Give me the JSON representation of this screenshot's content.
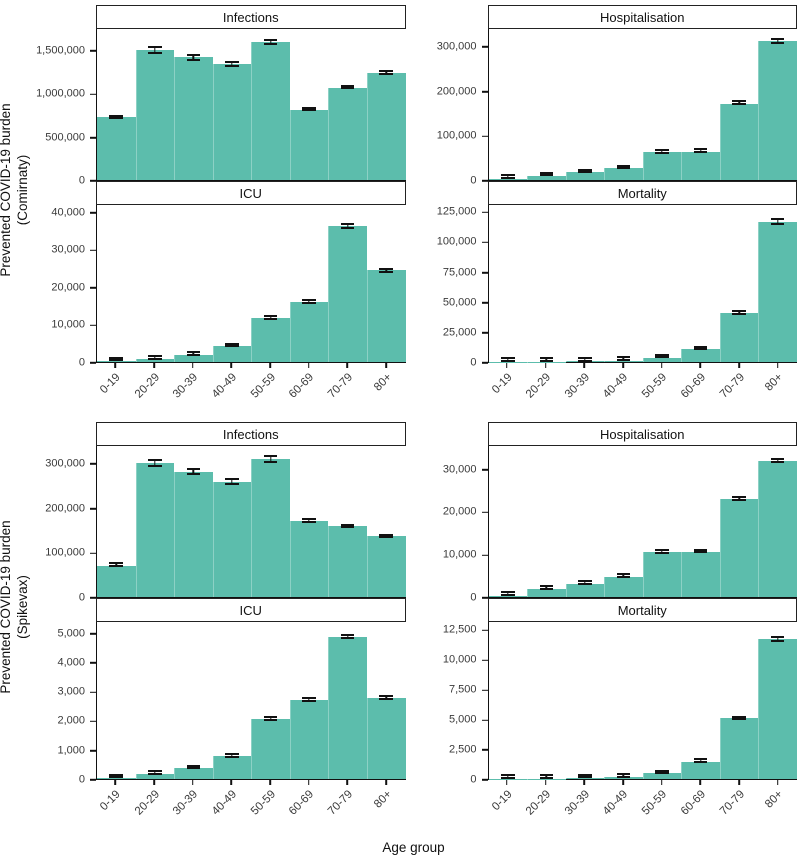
{
  "figure": {
    "xlabel": "Age group",
    "left_labels": [
      {
        "line1": "Prevented COVID-19 burden",
        "line2": "(Comirnaty)"
      },
      {
        "line1": "Prevented COVID-19 burden",
        "line2": "(Spikevax)"
      }
    ]
  },
  "colors": {
    "bar": "#5cbdac",
    "error_bar": "#111111",
    "axis_line": "#111111",
    "strip_border": "#222222",
    "tick_text": "#3a3a3a"
  },
  "categories": [
    "0-19",
    "20-29",
    "30-39",
    "40-49",
    "50-59",
    "60-69",
    "70-79",
    "80+"
  ],
  "chart_data": [
    {
      "type": "bar",
      "block": "Comirnaty",
      "title": "Infections",
      "ylim": [
        0,
        1750000
      ],
      "yticks": [
        0,
        500000,
        1000000,
        1500000
      ],
      "categories": [
        "0-19",
        "20-29",
        "30-39",
        "40-49",
        "50-59",
        "60-69",
        "70-79",
        "80+"
      ],
      "values": [
        730000,
        1510000,
        1420000,
        1340000,
        1600000,
        810000,
        1070000,
        1240000
      ],
      "errors": [
        25000,
        45000,
        40000,
        35000,
        35000,
        12000,
        20000,
        20000
      ]
    },
    {
      "type": "bar",
      "block": "Comirnaty",
      "title": "Hospitalisation",
      "ylim": [
        0,
        340000
      ],
      "yticks": [
        0,
        100000,
        200000,
        300000
      ],
      "categories": [
        "0-19",
        "20-29",
        "30-39",
        "40-49",
        "50-59",
        "60-69",
        "70-79",
        "80+"
      ],
      "values": [
        3000,
        10000,
        17000,
        26000,
        62000,
        64000,
        172000,
        313000
      ],
      "errors": [
        800,
        1200,
        1500,
        1800,
        2500,
        2500,
        3000,
        6000
      ]
    },
    {
      "type": "bar",
      "block": "Comirnaty",
      "title": "ICU",
      "ylim": [
        0,
        42000
      ],
      "yticks": [
        0,
        10000,
        20000,
        30000,
        40000
      ],
      "categories": [
        "0-19",
        "20-29",
        "30-39",
        "40-49",
        "50-59",
        "60-69",
        "70-79",
        "80+"
      ],
      "values": [
        300,
        800,
        1900,
        4200,
        11800,
        16000,
        36400,
        24500
      ],
      "errors": [
        80,
        150,
        250,
        300,
        450,
        500,
        900,
        700
      ]
    },
    {
      "type": "bar",
      "block": "Comirnaty",
      "title": "Mortality",
      "ylim": [
        0,
        131000
      ],
      "yticks": [
        0,
        25000,
        50000,
        75000,
        100000,
        125000
      ],
      "categories": [
        "0-19",
        "20-29",
        "30-39",
        "40-49",
        "50-59",
        "60-69",
        "70-79",
        "80+"
      ],
      "values": [
        200,
        300,
        500,
        1200,
        3500,
        10500,
        40500,
        117000
      ],
      "errors": [
        60,
        80,
        120,
        250,
        500,
        800,
        1200,
        2800
      ]
    },
    {
      "type": "bar",
      "block": "Spikevax",
      "title": "Infections",
      "ylim": [
        0,
        340000
      ],
      "yticks": [
        0,
        100000,
        200000,
        300000
      ],
      "categories": [
        "0-19",
        "20-29",
        "30-39",
        "40-49",
        "50-59",
        "60-69",
        "70-79",
        "80+"
      ],
      "values": [
        70000,
        302000,
        282000,
        260000,
        310000,
        172000,
        160000,
        137000
      ],
      "errors": [
        2500,
        9000,
        8000,
        7500,
        9000,
        5000,
        5000,
        4500
      ]
    },
    {
      "type": "bar",
      "block": "Spikevax",
      "title": "Hospitalisation",
      "ylim": [
        0,
        35500
      ],
      "yticks": [
        0,
        10000,
        20000,
        30000
      ],
      "categories": [
        "0-19",
        "20-29",
        "30-39",
        "40-49",
        "50-59",
        "60-69",
        "70-79",
        "80+"
      ],
      "values": [
        300,
        1900,
        3100,
        4700,
        10500,
        10600,
        23000,
        32000
      ],
      "errors": [
        80,
        150,
        200,
        250,
        300,
        300,
        400,
        500
      ]
    },
    {
      "type": "bar",
      "block": "Spikevax",
      "title": "ICU",
      "ylim": [
        0,
        5400
      ],
      "yticks": [
        0,
        1000,
        2000,
        3000,
        4000,
        5000
      ],
      "categories": [
        "0-19",
        "20-29",
        "30-39",
        "40-49",
        "50-59",
        "60-69",
        "70-79",
        "80+"
      ],
      "values": [
        30,
        160,
        380,
        780,
        2060,
        2720,
        4900,
        2790
      ],
      "errors": [
        10,
        25,
        40,
        50,
        60,
        60,
        90,
        60
      ]
    },
    {
      "type": "bar",
      "block": "Spikevax",
      "title": "Mortality",
      "ylim": [
        0,
        13200
      ],
      "yticks": [
        0,
        2500,
        5000,
        7500,
        10000,
        12500
      ],
      "categories": [
        "0-19",
        "20-29",
        "30-39",
        "40-49",
        "50-59",
        "60-69",
        "70-79",
        "80+"
      ],
      "values": [
        20,
        40,
        80,
        160,
        480,
        1450,
        5100,
        11800
      ],
      "errors": [
        8,
        12,
        20,
        40,
        80,
        100,
        150,
        250
      ]
    }
  ]
}
